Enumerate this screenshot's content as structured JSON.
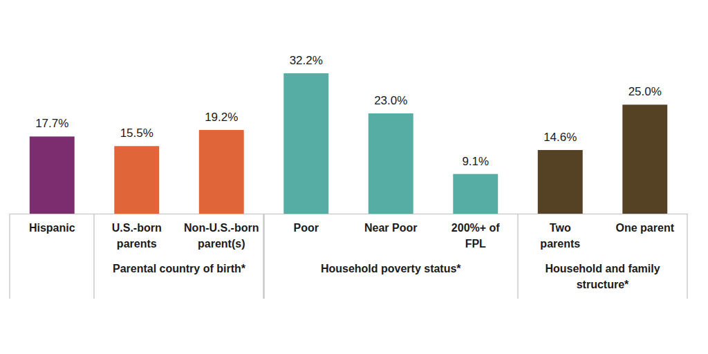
{
  "chart_data": {
    "type": "bar",
    "categories": [
      "Hispanic",
      "U.S.-born parents",
      "Non-U.S.-born parent(s)",
      "Poor",
      "Near Poor",
      "200%+ of FPL",
      "Two parents",
      "One parent"
    ],
    "values": [
      17.7,
      15.5,
      19.2,
      32.2,
      23.0,
      9.1,
      14.6,
      25.0
    ],
    "value_labels": [
      "17.7%",
      "15.5%",
      "19.2%",
      "32.2%",
      "23.0%",
      "9.1%",
      "14.6%",
      "25.0%"
    ],
    "colors": [
      "#7b2d6f",
      "#e0663a",
      "#e0663a",
      "#55ada3",
      "#55ada3",
      "#55ada3",
      "#554123",
      "#554123"
    ],
    "groups": [
      {
        "label": "Parental country of birth*",
        "categories": [
          "U.S.-born parents",
          "Non-U.S.-born parent(s)"
        ]
      },
      {
        "label": "Household poverty status*",
        "categories": [
          "Poor",
          "Near Poor",
          "200%+ of FPL"
        ]
      },
      {
        "label": "Household and family structure*",
        "categories": [
          "Two parents",
          "One parent"
        ]
      }
    ],
    "data_labels": true,
    "tick_labels": "x"
  }
}
